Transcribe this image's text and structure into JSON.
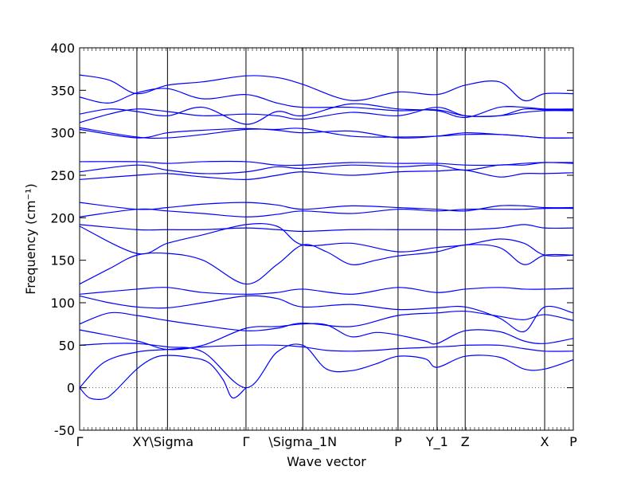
{
  "chart_data": {
    "type": "line",
    "title": "",
    "xlabel": "Wave vector",
    "ylabel": "Frequency (cm⁻¹)",
    "ylim": [
      -50,
      400
    ],
    "yticks": [
      -50,
      0,
      50,
      100,
      150,
      200,
      250,
      300,
      350,
      400
    ],
    "xticks": [
      {
        "label": "Γ",
        "x": 0.0
      },
      {
        "label": "X",
        "x": 0.116
      },
      {
        "label": "Y\\Sigma",
        "x": 0.178
      },
      {
        "label": "Γ",
        "x": 0.337
      },
      {
        "label": "\\Sigma_1N",
        "x": 0.452
      },
      {
        "label": "P",
        "x": 0.645
      },
      {
        "label": "Y_1",
        "x": 0.724
      },
      {
        "label": "Z",
        "x": 0.781
      },
      {
        "label": "X",
        "x": 0.942
      },
      {
        "label": "P",
        "x": 1.0
      }
    ],
    "zero_line": true,
    "color": "#0000ff",
    "series": [
      {
        "x": [
          0,
          0.02,
          0.05,
          0.07,
          0.116,
          0.15,
          0.178,
          0.22,
          0.26,
          0.29,
          0.31,
          0.337
        ],
        "y": [
          0,
          -12,
          -13,
          -5,
          22,
          35,
          38,
          36,
          30,
          10,
          -12,
          0
        ]
      },
      {
        "x": [
          0,
          0.05,
          0.116,
          0.178,
          0.25,
          0.337,
          0.4,
          0.452,
          0.5,
          0.55,
          0.6,
          0.645,
          0.69,
          0.724,
          0.76,
          0.781,
          0.85,
          0.9,
          0.942,
          1.0
        ],
        "y": [
          0,
          30,
          42,
          45,
          48,
          50,
          50,
          48,
          44,
          43,
          44,
          46,
          47,
          48,
          49,
          50,
          50,
          46,
          43,
          43
        ]
      },
      {
        "x": [
          0,
          0.06,
          0.116,
          0.178,
          0.25,
          0.337,
          0.4,
          0.452,
          0.5,
          0.55,
          0.6,
          0.645,
          0.7,
          0.724,
          0.781,
          0.85,
          0.9,
          0.942,
          1.0
        ],
        "y": [
          50,
          52,
          52,
          48,
          42,
          0,
          42,
          50,
          22,
          20,
          28,
          37,
          34,
          24,
          37,
          36,
          22,
          22,
          33
        ]
      },
      {
        "x": [
          0,
          0.116,
          0.178,
          0.25,
          0.337,
          0.4,
          0.452,
          0.5,
          0.55,
          0.6,
          0.645,
          0.7,
          0.724,
          0.781,
          0.85,
          0.9,
          0.942,
          1.0
        ],
        "y": [
          68,
          55,
          45,
          50,
          70,
          72,
          75,
          74,
          60,
          65,
          62,
          55,
          52,
          67,
          66,
          55,
          52,
          58
        ]
      },
      {
        "x": [
          0,
          0.06,
          0.116,
          0.178,
          0.25,
          0.337,
          0.4,
          0.452,
          0.55,
          0.645,
          0.724,
          0.781,
          0.85,
          0.9,
          0.942,
          1.0
        ],
        "y": [
          75,
          88,
          85,
          79,
          73,
          67,
          70,
          76,
          72,
          85,
          88,
          90,
          84,
          80,
          86,
          79
        ]
      },
      {
        "x": [
          0,
          0.06,
          0.116,
          0.178,
          0.25,
          0.337,
          0.4,
          0.452,
          0.55,
          0.645,
          0.724,
          0.781,
          0.85,
          0.9,
          0.942,
          1.0
        ],
        "y": [
          108,
          100,
          95,
          94,
          100,
          108,
          105,
          95,
          98,
          92,
          94,
          95,
          82,
          66,
          95,
          88
        ]
      },
      {
        "x": [
          0,
          0.116,
          0.178,
          0.25,
          0.337,
          0.4,
          0.452,
          0.55,
          0.645,
          0.724,
          0.781,
          0.85,
          0.9,
          0.942,
          1.0
        ],
        "y": [
          110,
          116,
          118,
          112,
          110,
          112,
          116,
          110,
          118,
          112,
          116,
          118,
          116,
          116,
          117
        ]
      },
      {
        "x": [
          0,
          0.06,
          0.116,
          0.178,
          0.25,
          0.337,
          0.4,
          0.452,
          0.5,
          0.55,
          0.6,
          0.645,
          0.724,
          0.781,
          0.85,
          0.9,
          0.942,
          1.0
        ],
        "y": [
          122,
          140,
          156,
          158,
          150,
          122,
          145,
          168,
          160,
          145,
          150,
          155,
          160,
          168,
          165,
          145,
          156,
          156
        ]
      },
      {
        "x": [
          0,
          0.116,
          0.178,
          0.25,
          0.337,
          0.4,
          0.452,
          0.55,
          0.645,
          0.724,
          0.781,
          0.85,
          0.9,
          0.942,
          1.0
        ],
        "y": [
          190,
          158,
          170,
          180,
          192,
          190,
          168,
          170,
          160,
          165,
          168,
          175,
          170,
          156,
          156
        ]
      },
      {
        "x": [
          0,
          0.116,
          0.178,
          0.25,
          0.337,
          0.4,
          0.452,
          0.55,
          0.645,
          0.724,
          0.781,
          0.85,
          0.9,
          0.942,
          1.0
        ],
        "y": [
          192,
          186,
          186,
          186,
          188,
          186,
          184,
          186,
          186,
          186,
          186,
          188,
          192,
          188,
          188
        ]
      },
      {
        "x": [
          0,
          0.116,
          0.178,
          0.25,
          0.337,
          0.4,
          0.452,
          0.55,
          0.645,
          0.724,
          0.781,
          0.85,
          0.9,
          0.942,
          1.0
        ],
        "y": [
          218,
          210,
          212,
          216,
          218,
          215,
          210,
          214,
          212,
          210,
          208,
          214,
          214,
          212,
          212
        ]
      },
      {
        "x": [
          0,
          0.116,
          0.178,
          0.25,
          0.337,
          0.4,
          0.452,
          0.55,
          0.645,
          0.724,
          0.781,
          0.85,
          0.9,
          0.942,
          1.0
        ],
        "y": [
          201,
          210,
          208,
          205,
          201,
          204,
          208,
          205,
          210,
          208,
          210,
          210,
          210,
          211,
          211
        ]
      },
      {
        "x": [
          0,
          0.116,
          0.178,
          0.25,
          0.337,
          0.4,
          0.452,
          0.55,
          0.645,
          0.724,
          0.781,
          0.85,
          0.9,
          0.942,
          1.0
        ],
        "y": [
          245,
          250,
          252,
          248,
          245,
          250,
          254,
          250,
          254,
          255,
          256,
          248,
          252,
          252,
          253
        ]
      },
      {
        "x": [
          0,
          0.116,
          0.178,
          0.25,
          0.337,
          0.4,
          0.452,
          0.55,
          0.645,
          0.724,
          0.781,
          0.85,
          0.9,
          0.942,
          1.0
        ],
        "y": [
          254,
          262,
          256,
          252,
          254,
          260,
          258,
          262,
          260,
          262,
          256,
          262,
          262,
          265,
          264
        ]
      },
      {
        "x": [
          0,
          0.116,
          0.178,
          0.25,
          0.337,
          0.4,
          0.452,
          0.55,
          0.645,
          0.724,
          0.781,
          0.85,
          0.9,
          0.942,
          1.0
        ],
        "y": [
          266,
          266,
          264,
          266,
          266,
          262,
          262,
          265,
          264,
          264,
          262,
          262,
          264,
          265,
          265
        ]
      },
      {
        "x": [
          0,
          0.116,
          0.178,
          0.25,
          0.337,
          0.4,
          0.452,
          0.55,
          0.645,
          0.724,
          0.781,
          0.85,
          0.9,
          0.942,
          1.0
        ],
        "y": [
          304,
          294,
          300,
          303,
          305,
          303,
          300,
          302,
          294,
          296,
          300,
          298,
          296,
          294,
          294
        ]
      },
      {
        "x": [
          0,
          0.116,
          0.178,
          0.25,
          0.337,
          0.4,
          0.452,
          0.55,
          0.645,
          0.724,
          0.781,
          0.85,
          0.9,
          0.942,
          1.0
        ],
        "y": [
          306,
          295,
          294,
          298,
          304,
          304,
          305,
          296,
          295,
          296,
          298,
          298,
          296,
          294,
          294
        ]
      },
      {
        "x": [
          0,
          0.06,
          0.116,
          0.178,
          0.25,
          0.337,
          0.4,
          0.452,
          0.55,
          0.645,
          0.724,
          0.781,
          0.85,
          0.9,
          0.942,
          1.0
        ],
        "y": [
          312,
          322,
          328,
          325,
          320,
          322,
          320,
          316,
          324,
          320,
          330,
          320,
          320,
          324,
          326,
          326
        ]
      },
      {
        "x": [
          0,
          0.06,
          0.116,
          0.178,
          0.25,
          0.337,
          0.4,
          0.452,
          0.55,
          0.645,
          0.724,
          0.781,
          0.85,
          0.9,
          0.942,
          1.0
        ],
        "y": [
          322,
          328,
          325,
          320,
          330,
          310,
          325,
          320,
          334,
          328,
          326,
          318,
          330,
          330,
          328,
          328
        ]
      },
      {
        "x": [
          0,
          0.06,
          0.116,
          0.178,
          0.25,
          0.337,
          0.4,
          0.452,
          0.55,
          0.645,
          0.724,
          0.781,
          0.85,
          0.9,
          0.942,
          1.0
        ],
        "y": [
          342,
          335,
          347,
          352,
          340,
          345,
          335,
          330,
          330,
          326,
          327,
          320,
          320,
          328,
          327,
          327
        ]
      },
      {
        "x": [
          0,
          0.06,
          0.116,
          0.178,
          0.25,
          0.337,
          0.4,
          0.452,
          0.55,
          0.645,
          0.724,
          0.781,
          0.85,
          0.9,
          0.942,
          1.0
        ],
        "y": [
          368,
          362,
          346,
          356,
          360,
          367,
          365,
          357,
          338,
          348,
          345,
          356,
          360,
          338,
          346,
          346
        ]
      }
    ]
  }
}
